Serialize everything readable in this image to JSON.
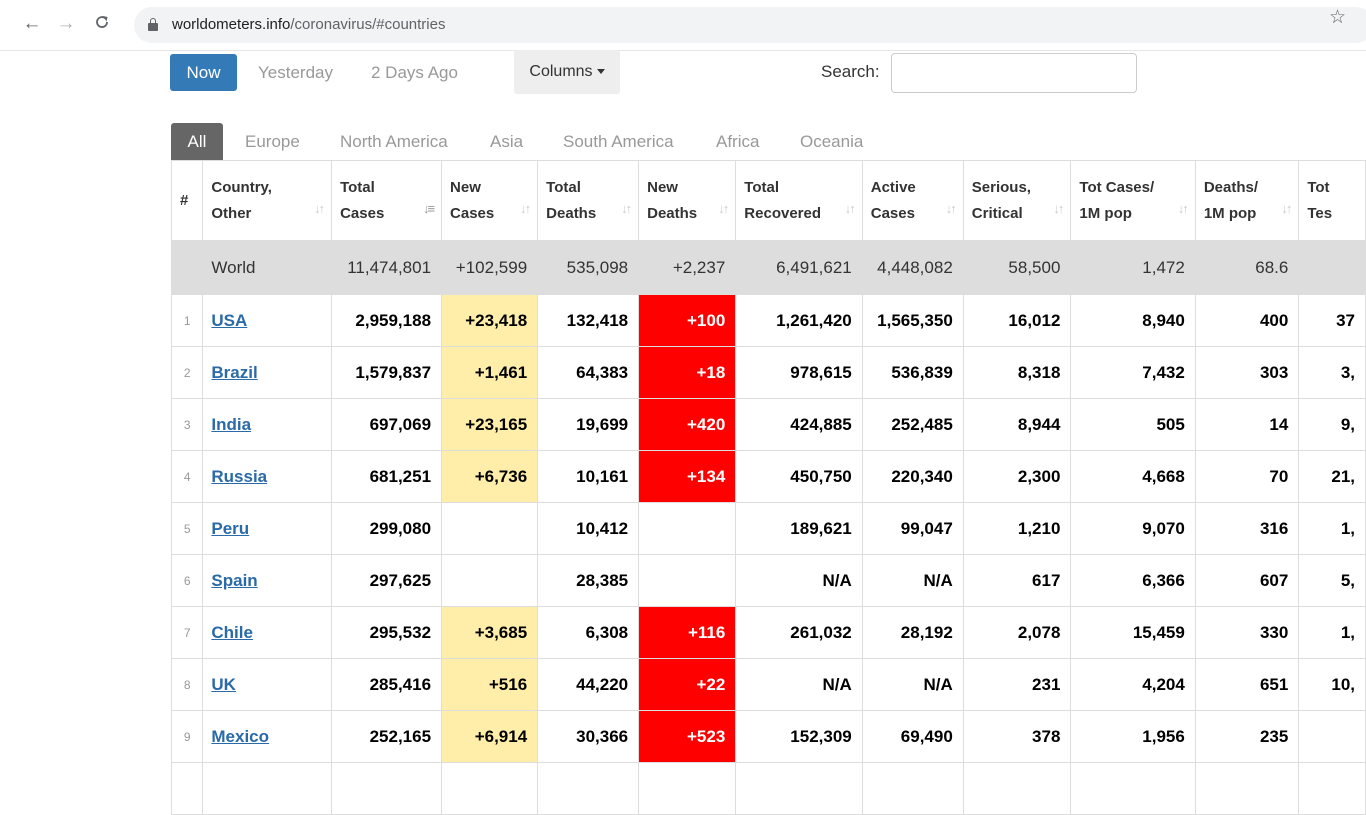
{
  "browser": {
    "url_domain": "worldometers.info",
    "url_path": "/coronavirus/#countries"
  },
  "controls": {
    "now_label": "Now",
    "yesterday_label": "Yesterday",
    "two_days_label": "2 Days Ago",
    "columns_label": "Columns",
    "search_label": "Search:",
    "search_value": ""
  },
  "tabs": [
    "All",
    "Europe",
    "North America",
    "Asia",
    "South America",
    "Africa",
    "Oceania"
  ],
  "headers": {
    "num": "#",
    "country_1": "Country,",
    "country_2": "Other",
    "total_cases_1": "Total",
    "total_cases_2": "Cases",
    "new_cases_1": "New",
    "new_cases_2": "Cases",
    "total_deaths_1": "Total",
    "total_deaths_2": "Deaths",
    "new_deaths_1": "New",
    "new_deaths_2": "Deaths",
    "total_recovered_1": "Total",
    "total_recovered_2": "Recovered",
    "active_cases_1": "Active",
    "active_cases_2": "Cases",
    "serious_1": "Serious,",
    "serious_2": "Critical",
    "tot_cases_1m_1": "Tot Cases/",
    "tot_cases_1m_2": "1M pop",
    "deaths_1m_1": "Deaths/",
    "deaths_1m_2": "1M pop",
    "tests_1": "Tot",
    "tests_2": "Tes"
  },
  "world": {
    "country": "World",
    "total_cases": "11,474,801",
    "new_cases": "+102,599",
    "total_deaths": "535,098",
    "new_deaths": "+2,237",
    "total_recovered": "6,491,621",
    "active_cases": "4,448,082",
    "serious": "58,500",
    "cases_1m": "1,472",
    "deaths_1m": "68.6",
    "tests": ""
  },
  "rows": [
    {
      "num": "1",
      "country": "USA",
      "total_cases": "2,959,188",
      "new_cases": "+23,418",
      "total_deaths": "132,418",
      "new_deaths": "+100",
      "total_recovered": "1,261,420",
      "active_cases": "1,565,350",
      "serious": "16,012",
      "cases_1m": "8,940",
      "deaths_1m": "400",
      "tests": "37"
    },
    {
      "num": "2",
      "country": "Brazil",
      "total_cases": "1,579,837",
      "new_cases": "+1,461",
      "total_deaths": "64,383",
      "new_deaths": "+18",
      "total_recovered": "978,615",
      "active_cases": "536,839",
      "serious": "8,318",
      "cases_1m": "7,432",
      "deaths_1m": "303",
      "tests": "3,"
    },
    {
      "num": "3",
      "country": "India",
      "total_cases": "697,069",
      "new_cases": "+23,165",
      "total_deaths": "19,699",
      "new_deaths": "+420",
      "total_recovered": "424,885",
      "active_cases": "252,485",
      "serious": "8,944",
      "cases_1m": "505",
      "deaths_1m": "14",
      "tests": "9,"
    },
    {
      "num": "4",
      "country": "Russia",
      "total_cases": "681,251",
      "new_cases": "+6,736",
      "total_deaths": "10,161",
      "new_deaths": "+134",
      "total_recovered": "450,750",
      "active_cases": "220,340",
      "serious": "2,300",
      "cases_1m": "4,668",
      "deaths_1m": "70",
      "tests": "21,"
    },
    {
      "num": "5",
      "country": "Peru",
      "total_cases": "299,080",
      "new_cases": "",
      "total_deaths": "10,412",
      "new_deaths": "",
      "total_recovered": "189,621",
      "active_cases": "99,047",
      "serious": "1,210",
      "cases_1m": "9,070",
      "deaths_1m": "316",
      "tests": "1,"
    },
    {
      "num": "6",
      "country": "Spain",
      "total_cases": "297,625",
      "new_cases": "",
      "total_deaths": "28,385",
      "new_deaths": "",
      "total_recovered": "N/A",
      "active_cases": "N/A",
      "serious": "617",
      "cases_1m": "6,366",
      "deaths_1m": "607",
      "tests": "5,"
    },
    {
      "num": "7",
      "country": "Chile",
      "total_cases": "295,532",
      "new_cases": "+3,685",
      "total_deaths": "6,308",
      "new_deaths": "+116",
      "total_recovered": "261,032",
      "active_cases": "28,192",
      "serious": "2,078",
      "cases_1m": "15,459",
      "deaths_1m": "330",
      "tests": "1,"
    },
    {
      "num": "8",
      "country": "UK",
      "total_cases": "285,416",
      "new_cases": "+516",
      "total_deaths": "44,220",
      "new_deaths": "+22",
      "total_recovered": "N/A",
      "active_cases": "N/A",
      "serious": "231",
      "cases_1m": "4,204",
      "deaths_1m": "651",
      "tests": "10,"
    },
    {
      "num": "9",
      "country": "Mexico",
      "total_cases": "252,165",
      "new_cases": "+6,914",
      "total_deaths": "30,366",
      "new_deaths": "+523",
      "total_recovered": "152,309",
      "active_cases": "69,490",
      "serious": "378",
      "cases_1m": "1,956",
      "deaths_1m": "235",
      "tests": ""
    },
    {
      "num": "",
      "country": "",
      "total_cases": "",
      "new_cases": "",
      "total_deaths": "",
      "new_deaths": "",
      "total_recovered": "",
      "active_cases": "",
      "serious": "",
      "cases_1m": "",
      "deaths_1m": "",
      "tests": ""
    }
  ]
}
